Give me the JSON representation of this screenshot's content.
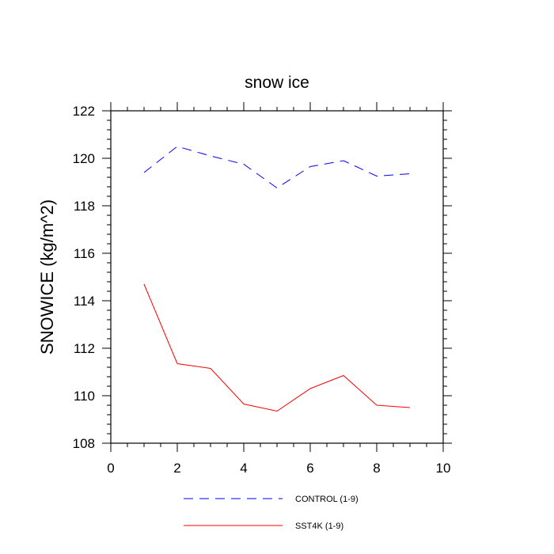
{
  "chart_data": {
    "type": "line",
    "title": "snow ice",
    "xlabel": "",
    "ylabel": "SNOWICE  (kg/m^2)",
    "xlim": [
      0,
      10
    ],
    "ylim": [
      108,
      122
    ],
    "xticks": [
      0,
      2,
      4,
      6,
      8,
      10
    ],
    "yticks": [
      108,
      110,
      112,
      114,
      116,
      118,
      120,
      122
    ],
    "grid": false,
    "legend_position": "bottom",
    "x": [
      1,
      2,
      3,
      4,
      5,
      6,
      7,
      8,
      9
    ],
    "series": [
      {
        "name": "CONTROL (1-9)",
        "color": "#0000ff",
        "style": "dashed",
        "values": [
          119.4,
          120.5,
          120.1,
          119.75,
          118.75,
          119.65,
          119.9,
          119.25,
          119.35
        ]
      },
      {
        "name": "SST4K (1-9)",
        "color": "#ff0000",
        "style": "solid",
        "values": [
          114.7,
          111.35,
          111.15,
          109.65,
          109.35,
          110.3,
          110.85,
          109.6,
          109.5
        ]
      }
    ]
  }
}
